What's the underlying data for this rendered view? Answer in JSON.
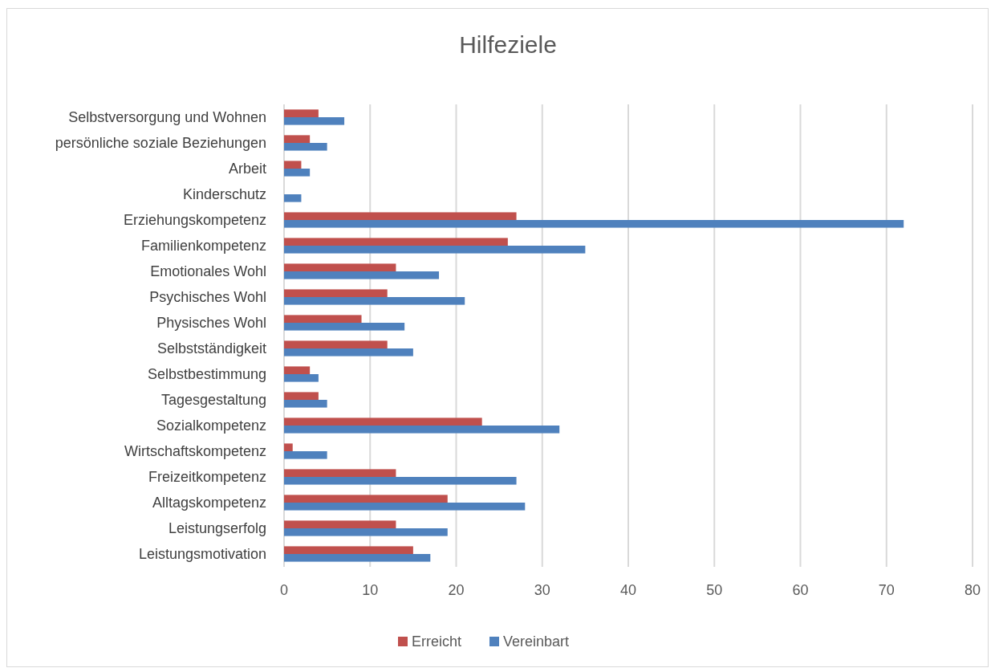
{
  "chart_data": {
    "type": "bar",
    "orientation": "horizontal",
    "title": "Hilfeziele",
    "categories": [
      "Selbstversorgung und Wohnen",
      "persönliche soziale Beziehungen",
      "Arbeit",
      "Kinderschutz",
      "Erziehungskompetenz",
      "Familienkompetenz",
      "Emotionales Wohl",
      "Psychisches Wohl",
      "Physisches Wohl",
      "Selbstständigkeit",
      "Selbstbestimmung",
      "Tagesgestaltung",
      "Sozialkompetenz",
      "Wirtschaftskompetenz",
      "Freizeitkompetenz",
      "Alltagskompetenz",
      "Leistungserfolg",
      "Leistungsmotivation"
    ],
    "series": [
      {
        "name": "Erreicht",
        "color": "#c0504d",
        "values": [
          4,
          3,
          2,
          0,
          27,
          26,
          13,
          12,
          9,
          12,
          3,
          4,
          23,
          1,
          13,
          19,
          13,
          15
        ]
      },
      {
        "name": "Vereinbart",
        "color": "#4f81bd",
        "values": [
          7,
          5,
          3,
          2,
          72,
          35,
          18,
          21,
          14,
          15,
          4,
          5,
          32,
          5,
          27,
          28,
          19,
          17
        ]
      }
    ],
    "xlim": [
      0,
      80
    ],
    "xticks": [
      0,
      10,
      20,
      30,
      40,
      50,
      60,
      70,
      80
    ],
    "grid": "x",
    "legend": "bottom"
  }
}
